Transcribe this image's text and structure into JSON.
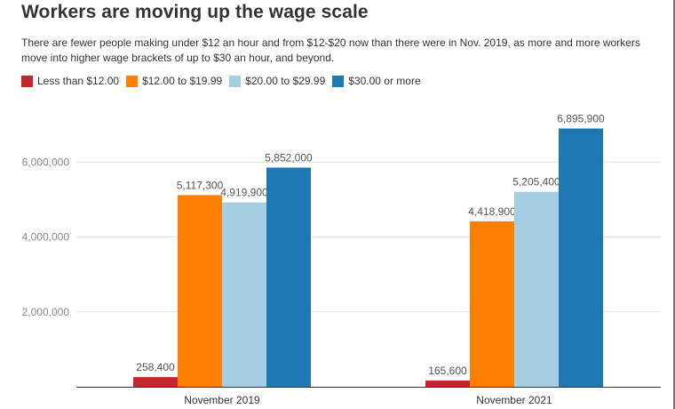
{
  "chart_data": {
    "type": "bar",
    "title": "Workers are moving up the wage scale",
    "subtitle": "There are fewer people making under $12 an hour and from $12-$20 now than there were in Nov. 2019, as more and more workers move into higher wage brackets of up to $30 an hour, and beyond.",
    "categories": [
      "November 2019",
      "November 2021"
    ],
    "series": [
      {
        "name": "Less than $12.00",
        "color": "#c1272d",
        "values": [
          258400,
          165600
        ],
        "labels": [
          "258,400",
          "165,600"
        ]
      },
      {
        "name": "$12.00 to $19.99",
        "color": "#ff7f00",
        "values": [
          5117300,
          4418900
        ],
        "labels": [
          "5,117,300",
          "4,418,900"
        ]
      },
      {
        "name": "$20.00 to $29.99",
        "color": "#a6cee3",
        "values": [
          4919900,
          5205400
        ],
        "labels": [
          "4,919,900",
          "5,205,400"
        ]
      },
      {
        "name": "$30.00 or more",
        "color": "#1f78b4",
        "values": [
          5852000,
          6895900
        ],
        "labels": [
          "5,852,000",
          "6,895,900"
        ]
      }
    ],
    "y_ticks": [
      2000000,
      4000000,
      6000000
    ],
    "y_tick_labels": [
      "2,000,000",
      "4,000,000",
      "6,000,000"
    ],
    "ylim": [
      0,
      8000000
    ],
    "legend_position": "top-left",
    "grid": true
  }
}
